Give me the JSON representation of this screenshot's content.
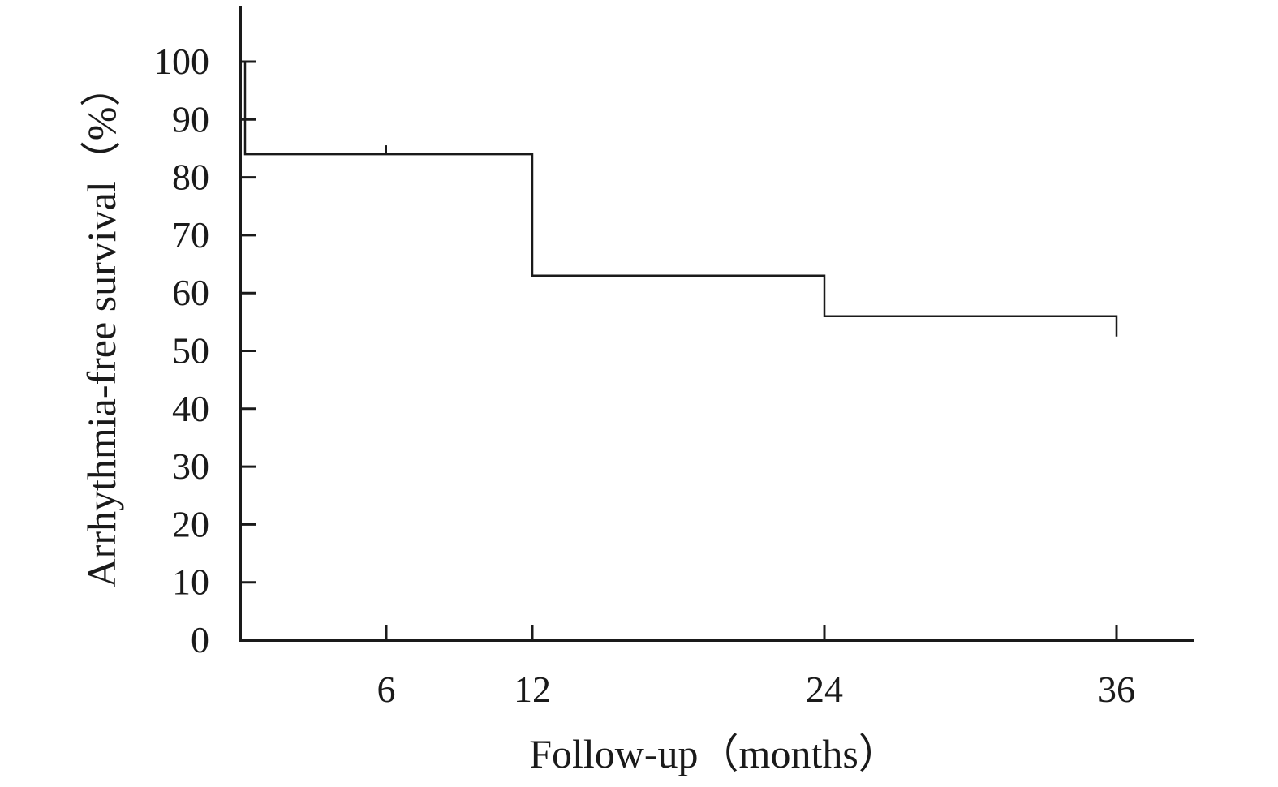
{
  "chart_data": {
    "type": "line",
    "subtype": "kaplan-meier-step",
    "title": "",
    "xlabel": "Follow-up（months）",
    "ylabel": "Arrhythmia-free survival（%）",
    "xlim": [
      0,
      39.2
    ],
    "ylim": [
      0,
      100
    ],
    "x_ticks": [
      6,
      12,
      24,
      36
    ],
    "x_tick_labels": [
      "6",
      "12",
      "24",
      "36"
    ],
    "y_ticks": [
      0,
      10,
      20,
      30,
      40,
      50,
      60,
      70,
      80,
      90,
      100
    ],
    "y_tick_labels": [
      "0",
      "10",
      "20",
      "30",
      "40",
      "50",
      "60",
      "70",
      "80",
      "90",
      "100"
    ],
    "grid": false,
    "legend": "none",
    "series": [
      {
        "steps": [
          {
            "x": 0.2,
            "y": 100
          },
          {
            "x": 0.2,
            "y": 84
          },
          {
            "x": 12,
            "y": 84
          },
          {
            "x": 12,
            "y": 63
          },
          {
            "x": 24,
            "y": 63
          },
          {
            "x": 24,
            "y": 56
          },
          {
            "x": 36,
            "y": 56
          },
          {
            "x": 36,
            "y": 52.5
          }
        ],
        "censor_marks": [
          {
            "x": 6,
            "y": 84
          }
        ]
      }
    ]
  }
}
